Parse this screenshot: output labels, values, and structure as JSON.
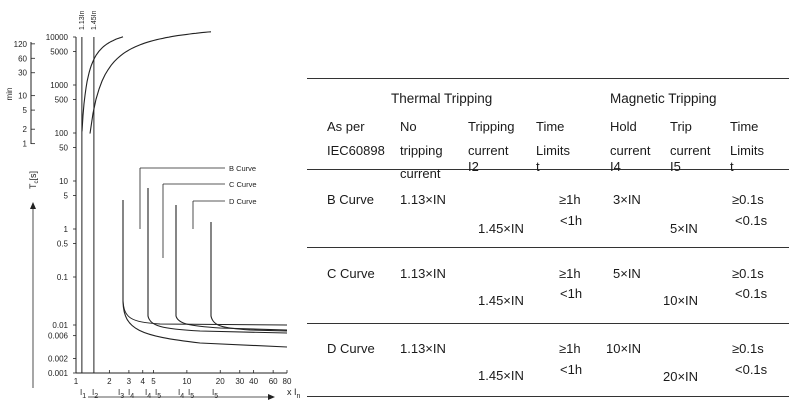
{
  "chart": {
    "type": "line",
    "title": "",
    "ylabel_main": "T",
    "ylabel_sub": "c",
    "ylabel_unit": "[s]",
    "ylabel_min": "min",
    "xlabel_main": "x I",
    "xlabel_sub": "n",
    "top_labels": [
      "1.13In",
      "1.45In"
    ],
    "y_ticks_seconds": [
      "10000",
      "5000",
      "1000",
      "500",
      "100",
      "50",
      "10",
      "5",
      "1",
      "0.5",
      "0.1",
      "0.01",
      "0.006",
      "0.002",
      "0.001"
    ],
    "y_ticks_minutes": [
      "120",
      "60",
      "30",
      "10",
      "5",
      "2",
      "1"
    ],
    "x_ticks": [
      "1",
      "2",
      "3",
      "4",
      "5",
      "10",
      "20",
      "30",
      "40",
      "60",
      "80"
    ],
    "x_sub_labels": [
      {
        "main": "I",
        "sub": "1"
      },
      {
        "main": "I",
        "sub": "2"
      },
      {
        "main": "I",
        "sub": "3"
      },
      {
        "main": "I",
        "sub": "4"
      },
      {
        "main": "I",
        "sub": "4"
      },
      {
        "main": "I",
        "sub": "5"
      },
      {
        "main": "I",
        "sub": "4"
      },
      {
        "main": "I",
        "sub": "5"
      },
      {
        "main": "I",
        "sub": "5"
      }
    ],
    "legend": [
      "B Curve",
      "C Curve",
      "D Curve"
    ]
  },
  "chart_data": {
    "type": "line",
    "series": [
      {
        "name": "B Curve",
        "thermal_limits_xIn": [
          1.13,
          1.45
        ],
        "magnetic_hold_xIn": 3,
        "magnetic_trip_xIn": 5
      },
      {
        "name": "C Curve",
        "thermal_limits_xIn": [
          1.13,
          1.45
        ],
        "magnetic_hold_xIn": 5,
        "magnetic_trip_xIn": 10
      },
      {
        "name": "D Curve",
        "thermal_limits_xIn": [
          1.13,
          1.45
        ],
        "magnetic_hold_xIn": 10,
        "magnetic_trip_xIn": 20
      }
    ],
    "ylim_seconds": [
      0.001,
      10000
    ],
    "xlim_xIn": [
      1,
      80
    ],
    "x_scale": "log",
    "y_scale": "log"
  },
  "table": {
    "group_thermal": "Thermal Tripping",
    "group_magnetic": "Magnetic Tripping",
    "col_as_per": [
      "As per",
      "IEC60898"
    ],
    "col_no_tripping": [
      "No",
      "tripping",
      "current"
    ],
    "col_tripping": [
      "Tripping",
      "current",
      "I2"
    ],
    "col_time1": [
      "Time",
      "Limits",
      "t"
    ],
    "col_hold": [
      "Hold",
      "current",
      "I4"
    ],
    "col_trip": [
      "Trip",
      "current",
      "I5"
    ],
    "col_time2": [
      "Time",
      "Limits",
      "t"
    ],
    "rows": [
      {
        "name": "B Curve",
        "no_trip": "1.13×IN",
        "trip": "1.45×IN",
        "t1a": "≥1h",
        "t1b": "<1h",
        "hold": "3×IN",
        "tripm": "5×IN",
        "t2a": "≥0.1s",
        "t2b": "<0.1s"
      },
      {
        "name": "C Curve",
        "no_trip": "1.13×IN",
        "trip": "1.45×IN",
        "t1a": "≥1h",
        "t1b": "<1h",
        "hold": "5×IN",
        "tripm": "10×IN",
        "t2a": "≥0.1s",
        "t2b": "<0.1s"
      },
      {
        "name": "D Curve",
        "no_trip": "1.13×IN",
        "trip": "1.45×IN",
        "t1a": "≥1h",
        "t1b": "<1h",
        "hold": "10×IN",
        "tripm": "20×IN",
        "t2a": "≥0.1s",
        "t2b": "<0.1s"
      }
    ]
  }
}
